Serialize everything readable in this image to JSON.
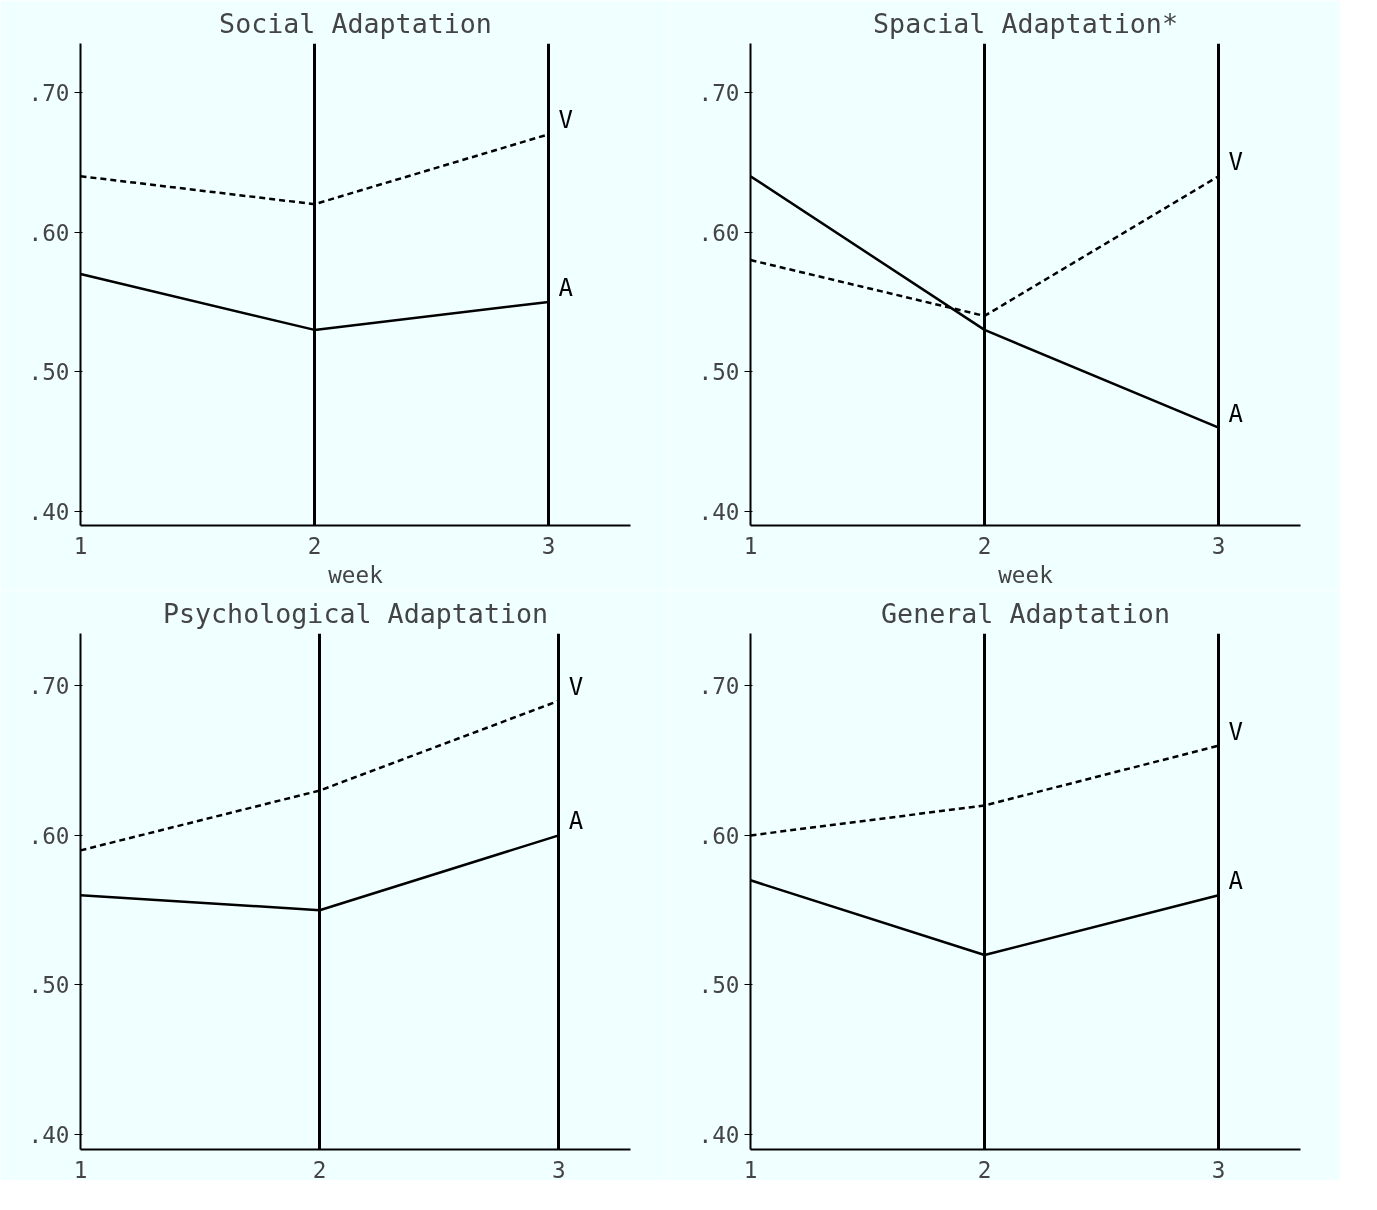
{
  "chart_data": [
    {
      "type": "line",
      "title": "Social Adaptation",
      "xlabel": "week",
      "x": [
        1,
        2,
        3
      ],
      "xlim": [
        1,
        3.35
      ],
      "xticks": [
        1,
        2,
        3
      ],
      "ylim": [
        0.39,
        0.735
      ],
      "yticks": [
        {
          "value": 0.4,
          "label": ".40"
        },
        {
          "value": 0.5,
          "label": ".50"
        },
        {
          "value": 0.6,
          "label": ".60"
        },
        {
          "value": 0.7,
          "label": ".70"
        }
      ],
      "grid": "x",
      "legend": false,
      "marker": "none",
      "series": [
        {
          "name": "V",
          "color": "#000000",
          "line_style": "dashed",
          "values": [
            0.64,
            0.62,
            0.67
          ]
        },
        {
          "name": "A",
          "color": "#000000",
          "line_style": "solid",
          "values": [
            0.57,
            0.53,
            0.55
          ]
        }
      ]
    },
    {
      "type": "line",
      "title": "Spacial Adaptation*",
      "xlabel": "week",
      "x": [
        1,
        2,
        3
      ],
      "xlim": [
        1,
        3.35
      ],
      "xticks": [
        1,
        2,
        3
      ],
      "ylim": [
        0.39,
        0.735
      ],
      "yticks": [
        {
          "value": 0.4,
          "label": ".40"
        },
        {
          "value": 0.5,
          "label": ".50"
        },
        {
          "value": 0.6,
          "label": ".60"
        },
        {
          "value": 0.7,
          "label": ".70"
        }
      ],
      "grid": "x",
      "legend": false,
      "marker": "none",
      "series": [
        {
          "name": "V",
          "color": "#000000",
          "line_style": "dashed",
          "values": [
            0.58,
            0.54,
            0.64
          ]
        },
        {
          "name": "A",
          "color": "#000000",
          "line_style": "solid",
          "values": [
            0.64,
            0.53,
            0.46
          ]
        }
      ]
    },
    {
      "type": "line",
      "title": "Psychological Adaptation",
      "x": [
        1,
        2,
        3
      ],
      "xlim": [
        1,
        3.3
      ],
      "xticks": [
        1,
        2,
        3
      ],
      "ylim": [
        0.39,
        0.735
      ],
      "yticks": [
        {
          "value": 0.4,
          "label": ".40"
        },
        {
          "value": 0.5,
          "label": ".50"
        },
        {
          "value": 0.6,
          "label": ".60"
        },
        {
          "value": 0.7,
          "label": ".70"
        }
      ],
      "grid": "x",
      "legend": false,
      "marker": "none",
      "series": [
        {
          "name": "V",
          "color": "#000000",
          "line_style": "dashed",
          "values": [
            0.59,
            0.63,
            0.69
          ]
        },
        {
          "name": "A",
          "color": "#000000",
          "line_style": "solid",
          "values": [
            0.56,
            0.55,
            0.6
          ]
        }
      ]
    },
    {
      "type": "line",
      "title": "General Adaptation",
      "x": [
        1,
        2,
        3
      ],
      "xlim": [
        1,
        3.35
      ],
      "xticks": [
        1,
        2,
        3
      ],
      "ylim": [
        0.39,
        0.735
      ],
      "yticks": [
        {
          "value": 0.4,
          "label": ".40"
        },
        {
          "value": 0.5,
          "label": ".50"
        },
        {
          "value": 0.6,
          "label": ".60"
        },
        {
          "value": 0.7,
          "label": ".70"
        }
      ],
      "grid": "x",
      "legend": false,
      "marker": "none",
      "series": [
        {
          "name": "V",
          "color": "#000000",
          "line_style": "dashed",
          "values": [
            0.6,
            0.62,
            0.66
          ]
        },
        {
          "name": "A",
          "color": "#000000",
          "line_style": "solid",
          "values": [
            0.57,
            0.52,
            0.56
          ]
        }
      ]
    }
  ]
}
